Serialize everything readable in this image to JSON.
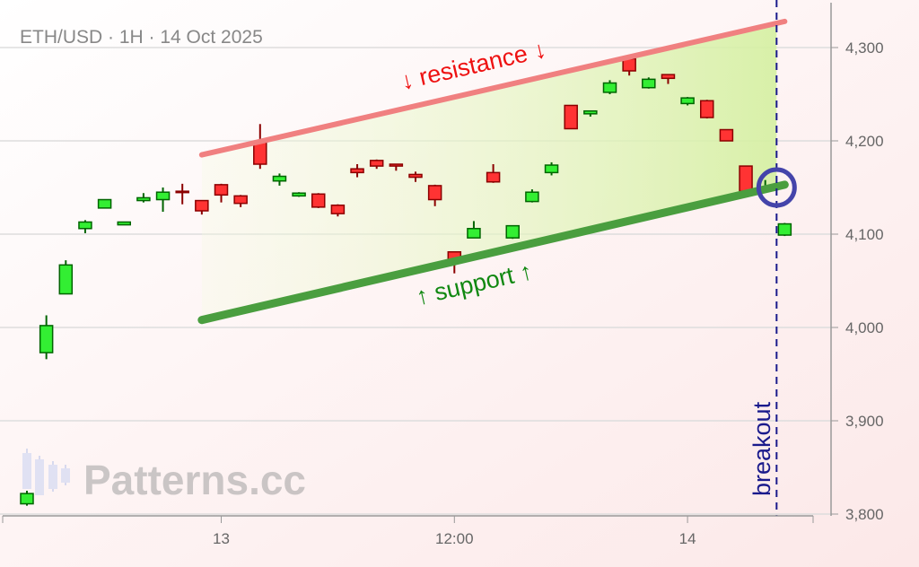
{
  "chart_data": {
    "type": "candlestick",
    "title": "ETH/USD · 1H · 14 Oct 2025",
    "ylim": [
      3800,
      4350
    ],
    "y_ticks": [
      3800,
      3900,
      4000,
      4100,
      4200,
      4300
    ],
    "y_tick_labels": [
      "3,800",
      "3,900",
      "4,000",
      "4,100",
      "4,200",
      "4,300"
    ],
    "x_ticks": [
      {
        "t": "2025-10-13 00:00",
        "label": "13"
      },
      {
        "t": "2025-10-13 12:00",
        "label": "12:00"
      },
      {
        "t": "2025-10-14 00:00",
        "label": "14"
      }
    ],
    "grid": true,
    "start": "2025-10-12 14:00",
    "interval_hours": 1,
    "candles": [
      [
        3811,
        3825,
        3809,
        3822
      ],
      [
        3973,
        4013,
        3966,
        4002
      ],
      [
        4036,
        4072,
        4036,
        4067
      ],
      [
        4106,
        4115,
        4101,
        4113
      ],
      [
        4128,
        4137,
        4128,
        4137
      ],
      [
        4110,
        4113,
        4110,
        4113
      ],
      [
        4136,
        4144,
        4134,
        4139
      ],
      [
        4137,
        4150,
        4124,
        4145
      ],
      [
        4146,
        4154,
        4132,
        4145
      ],
      [
        4136,
        4136,
        4121,
        4125
      ],
      [
        4153,
        4154,
        4134,
        4142
      ],
      [
        4141,
        4142,
        4129,
        4133
      ],
      [
        4199,
        4218,
        4170,
        4175
      ],
      [
        4157,
        4165,
        4152,
        4162
      ],
      [
        4141,
        4145,
        4140,
        4144
      ],
      [
        4143,
        4144,
        4128,
        4129
      ],
      [
        4131,
        4132,
        4119,
        4122
      ],
      [
        4170,
        4175,
        4161,
        4166
      ],
      [
        4179,
        4180,
        4170,
        4173
      ],
      [
        4175,
        4175,
        4168,
        4173
      ],
      [
        4164,
        4167,
        4156,
        4161
      ],
      [
        4152,
        4153,
        4130,
        4137
      ],
      [
        4081,
        4081,
        4058,
        4069
      ],
      [
        4096,
        4114,
        4096,
        4106
      ],
      [
        4166,
        4175,
        4155,
        4156
      ],
      [
        4096,
        4109,
        4095,
        4109
      ],
      [
        4135,
        4148,
        4134,
        4145
      ],
      [
        4166,
        4177,
        4163,
        4174
      ],
      [
        4238,
        4238,
        4213,
        4213
      ],
      [
        4229,
        4232,
        4226,
        4232
      ],
      [
        4252,
        4265,
        4250,
        4262
      ],
      [
        4288,
        4290,
        4270,
        4275
      ],
      [
        4257,
        4268,
        4256,
        4266
      ],
      [
        4271,
        4271,
        4261,
        4267
      ],
      [
        4240,
        4247,
        4238,
        4246
      ],
      [
        4243,
        4244,
        4224,
        4225
      ],
      [
        4212,
        4212,
        4200,
        4200
      ],
      [
        4173,
        4173,
        4146,
        4146
      ],
      [
        4150,
        4158,
        4148,
        4150
      ],
      [
        4099,
        4112,
        4098,
        4111
      ]
    ],
    "resistance": {
      "label": "↓ resistance ↓",
      "from": [
        "2025-10-12 23:00",
        4185
      ],
      "to": [
        "2025-10-14 05:00",
        4328
      ],
      "color": "#f08080"
    },
    "support": {
      "label": "↑ support ↑",
      "from": [
        "2025-10-12 23:00",
        4008
      ],
      "to": [
        "2025-10-14 05:00",
        4153
      ],
      "color": "#4a9e3f"
    },
    "breakout": {
      "label": "breakout",
      "t": "2025-10-14 04:35",
      "price": 4150,
      "color": "#1a1a8c"
    },
    "colors": {
      "up": "#33ee33",
      "up_edge": "#006400",
      "down": "#ff3333",
      "down_edge": "#8b0000"
    },
    "watermark": "Patterns.cc"
  }
}
